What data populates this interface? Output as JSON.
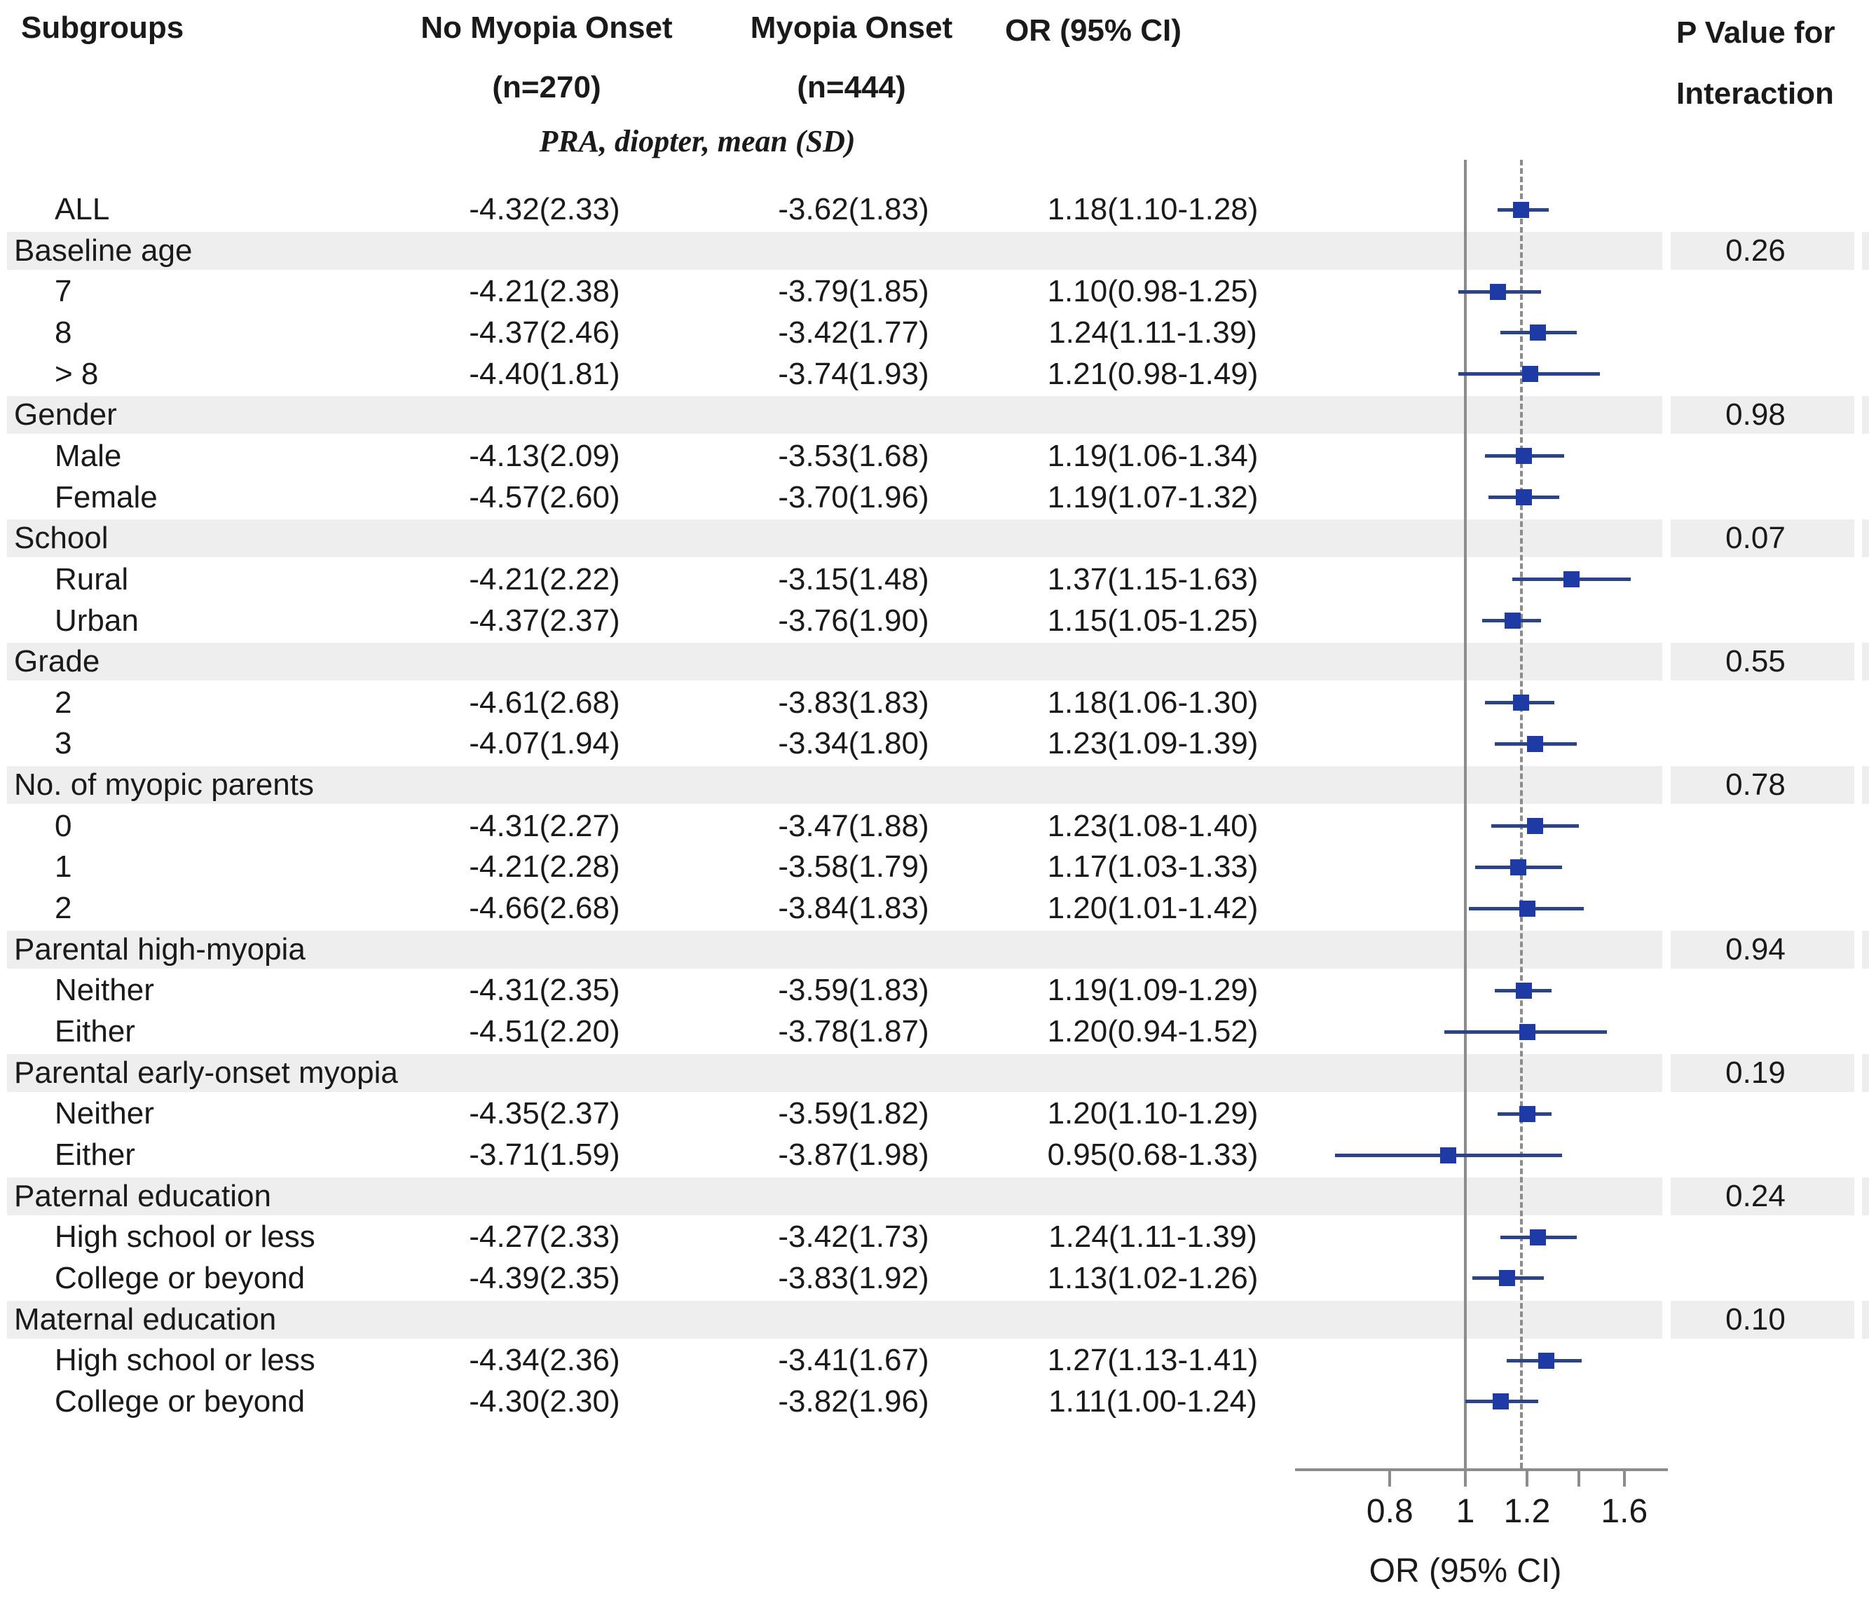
{
  "header": {
    "subgroups": "Subgroups",
    "no_onset_line1": "No Myopia Onset",
    "no_onset_line2": "(n=270)",
    "onset_line1": "Myopia Onset",
    "onset_line2": "(n=444)",
    "or_col": "OR (95% CI)",
    "p_line1": "P Value for",
    "p_line2": "Interaction",
    "section_label": "PRA, diopter, mean (SD)"
  },
  "colors": {
    "marker": "#1d3aa5",
    "ci_line": "#2c4388",
    "band": "#eeeeee",
    "axis": "#8c8c8c",
    "text": "#1a1a1a"
  },
  "chart_data": {
    "type": "forest",
    "x_scale": "log",
    "xlim": [
      0.6,
      1.82
    ],
    "xlabel": "OR (95% CI)",
    "reference_line": 1.0,
    "dashed_reference": 1.18,
    "x_ticks": [
      {
        "v": 0.8,
        "label": "0.8"
      },
      {
        "v": 1.0,
        "label": "1"
      },
      {
        "v": 1.2,
        "label": "1.2"
      },
      {
        "v": 1.4,
        "label": ""
      },
      {
        "v": 1.6,
        "label": "1.6"
      }
    ],
    "rows": [
      {
        "type": "data",
        "label": "ALL",
        "no_onset": "-4.32(2.33)",
        "onset": "-3.62(1.83)",
        "or_text": "1.18(1.10-1.28)",
        "or": 1.18,
        "lo": 1.1,
        "hi": 1.28
      },
      {
        "type": "group",
        "label": "Baseline age",
        "p": "0.26"
      },
      {
        "type": "data",
        "label": "7",
        "no_onset": "-4.21(2.38)",
        "onset": "-3.79(1.85)",
        "or_text": "1.10(0.98-1.25)",
        "or": 1.1,
        "lo": 0.98,
        "hi": 1.25
      },
      {
        "type": "data",
        "label": "8",
        "no_onset": "-4.37(2.46)",
        "onset": "-3.42(1.77)",
        "or_text": "1.24(1.11-1.39)",
        "or": 1.24,
        "lo": 1.11,
        "hi": 1.39
      },
      {
        "type": "data",
        "label": "> 8",
        "no_onset": "-4.40(1.81)",
        "onset": "-3.74(1.93)",
        "or_text": "1.21(0.98-1.49)",
        "or": 1.21,
        "lo": 0.98,
        "hi": 1.49
      },
      {
        "type": "group",
        "label": "Gender",
        "p": "0.98"
      },
      {
        "type": "data",
        "label": "Male",
        "no_onset": "-4.13(2.09)",
        "onset": "-3.53(1.68)",
        "or_text": "1.19(1.06-1.34)",
        "or": 1.19,
        "lo": 1.06,
        "hi": 1.34
      },
      {
        "type": "data",
        "label": "Female",
        "no_onset": "-4.57(2.60)",
        "onset": "-3.70(1.96)",
        "or_text": "1.19(1.07-1.32)",
        "or": 1.19,
        "lo": 1.07,
        "hi": 1.32
      },
      {
        "type": "group",
        "label": "School",
        "p": "0.07"
      },
      {
        "type": "data",
        "label": "Rural",
        "no_onset": "-4.21(2.22)",
        "onset": "-3.15(1.48)",
        "or_text": "1.37(1.15-1.63)",
        "or": 1.37,
        "lo": 1.15,
        "hi": 1.63
      },
      {
        "type": "data",
        "label": "Urban",
        "no_onset": "-4.37(2.37)",
        "onset": "-3.76(1.90)",
        "or_text": "1.15(1.05-1.25)",
        "or": 1.15,
        "lo": 1.05,
        "hi": 1.25
      },
      {
        "type": "group",
        "label": "Grade",
        "p": "0.55"
      },
      {
        "type": "data",
        "label": "2",
        "no_onset": "-4.61(2.68)",
        "onset": "-3.83(1.83)",
        "or_text": "1.18(1.06-1.30)",
        "or": 1.18,
        "lo": 1.06,
        "hi": 1.3
      },
      {
        "type": "data",
        "label": "3",
        "no_onset": "-4.07(1.94)",
        "onset": "-3.34(1.80)",
        "or_text": "1.23(1.09-1.39)",
        "or": 1.23,
        "lo": 1.09,
        "hi": 1.39
      },
      {
        "type": "group",
        "label": "No. of myopic parents",
        "p": "0.78"
      },
      {
        "type": "data",
        "label": "0",
        "no_onset": "-4.31(2.27)",
        "onset": "-3.47(1.88)",
        "or_text": "1.23(1.08-1.40)",
        "or": 1.23,
        "lo": 1.08,
        "hi": 1.4
      },
      {
        "type": "data",
        "label": "1",
        "no_onset": "-4.21(2.28)",
        "onset": "-3.58(1.79)",
        "or_text": "1.17(1.03-1.33)",
        "or": 1.17,
        "lo": 1.03,
        "hi": 1.33
      },
      {
        "type": "data",
        "label": "2",
        "no_onset": "-4.66(2.68)",
        "onset": "-3.84(1.83)",
        "or_text": "1.20(1.01-1.42)",
        "or": 1.2,
        "lo": 1.01,
        "hi": 1.42
      },
      {
        "type": "group",
        "label": "Parental high-myopia",
        "p": "0.94"
      },
      {
        "type": "data",
        "label": "Neither",
        "no_onset": "-4.31(2.35)",
        "onset": "-3.59(1.83)",
        "or_text": "1.19(1.09-1.29)",
        "or": 1.19,
        "lo": 1.09,
        "hi": 1.29
      },
      {
        "type": "data",
        "label": "Either",
        "no_onset": "-4.51(2.20)",
        "onset": "-3.78(1.87)",
        "or_text": "1.20(0.94-1.52)",
        "or": 1.2,
        "lo": 0.94,
        "hi": 1.52
      },
      {
        "type": "group",
        "label": "Parental early-onset myopia",
        "p": "0.19"
      },
      {
        "type": "data",
        "label": "Neither",
        "no_onset": "-4.35(2.37)",
        "onset": "-3.59(1.82)",
        "or_text": "1.20(1.10-1.29)",
        "or": 1.2,
        "lo": 1.1,
        "hi": 1.29
      },
      {
        "type": "data",
        "label": "Either",
        "no_onset": "-3.71(1.59)",
        "onset": "-3.87(1.98)",
        "or_text": "0.95(0.68-1.33)",
        "or": 0.95,
        "lo": 0.68,
        "hi": 1.33
      },
      {
        "type": "group",
        "label": "Paternal education",
        "p": "0.24"
      },
      {
        "type": "data",
        "label": "High school or less",
        "no_onset": "-4.27(2.33)",
        "onset": "-3.42(1.73)",
        "or_text": "1.24(1.11-1.39)",
        "or": 1.24,
        "lo": 1.11,
        "hi": 1.39
      },
      {
        "type": "data",
        "label": "College or beyond",
        "no_onset": "-4.39(2.35)",
        "onset": "-3.83(1.92)",
        "or_text": "1.13(1.02-1.26)",
        "or": 1.13,
        "lo": 1.02,
        "hi": 1.26
      },
      {
        "type": "group",
        "label": "Maternal education",
        "p": "0.10"
      },
      {
        "type": "data",
        "label": "High school or less",
        "no_onset": "-4.34(2.36)",
        "onset": "-3.41(1.67)",
        "or_text": "1.27(1.13-1.41)",
        "or": 1.27,
        "lo": 1.13,
        "hi": 1.41
      },
      {
        "type": "data",
        "label": "College or beyond",
        "no_onset": "-4.30(2.30)",
        "onset": "-3.82(1.96)",
        "or_text": "1.11(1.00-1.24)",
        "or": 1.11,
        "lo": 1.0,
        "hi": 1.24
      }
    ]
  }
}
